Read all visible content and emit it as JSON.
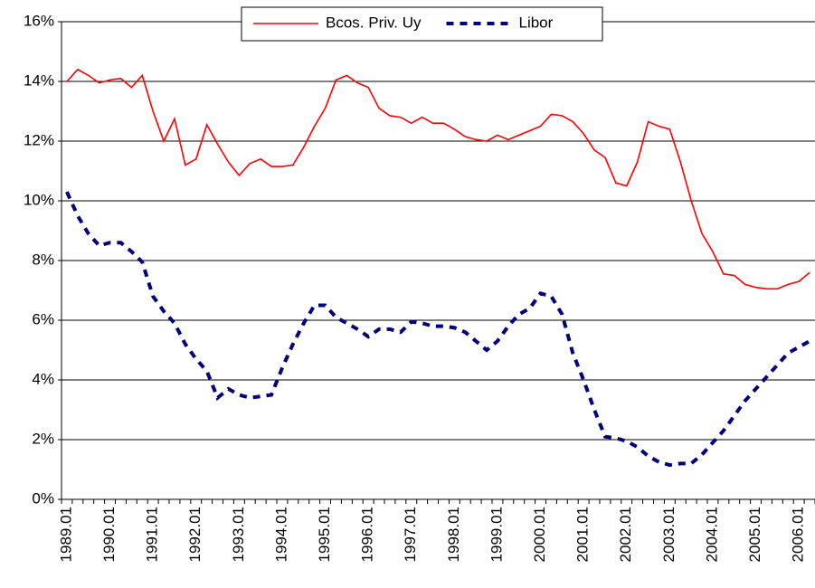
{
  "chart_data": {
    "type": "line",
    "categories": [
      "1989.01",
      null,
      null,
      null,
      "1990.01",
      null,
      null,
      null,
      "1991.01",
      null,
      null,
      null,
      "1992.01",
      null,
      null,
      null,
      "1993.01",
      null,
      null,
      null,
      "1994.01",
      null,
      null,
      null,
      "1995.01",
      null,
      null,
      null,
      "1996.01",
      null,
      null,
      null,
      "1997.01",
      null,
      null,
      null,
      "1998.01",
      null,
      null,
      null,
      "1999.01",
      null,
      null,
      null,
      "2000.01",
      null,
      null,
      null,
      "2001.01",
      null,
      null,
      null,
      "2002.01",
      null,
      null,
      null,
      "2003.01",
      null,
      null,
      null,
      "2004.01",
      null,
      null,
      null,
      "2005.01",
      null,
      null,
      null,
      "2006.01",
      null
    ],
    "series": [
      {
        "name": "Bcos. Priv. Uy",
        "color": "#ff0000",
        "dash": false,
        "values": [
          14.0,
          14.4,
          14.2,
          13.95,
          14.05,
          14.1,
          13.8,
          14.2,
          13.0,
          12.0,
          12.75,
          11.2,
          11.4,
          12.55,
          11.9,
          11.3,
          10.85,
          11.25,
          11.4,
          11.15,
          11.15,
          11.2,
          11.8,
          12.5,
          13.1,
          14.05,
          14.2,
          13.95,
          13.8,
          13.1,
          12.85,
          12.8,
          12.6,
          12.8,
          12.6,
          12.6,
          12.4,
          12.15,
          12.05,
          12.0,
          12.2,
          12.05,
          12.2,
          12.35,
          12.5,
          12.9,
          12.85,
          12.65,
          12.25,
          11.7,
          11.45,
          10.6,
          10.5,
          11.3,
          12.65,
          12.5,
          12.4,
          11.3,
          10.0,
          8.9,
          8.3,
          7.55,
          7.5,
          7.2,
          7.1,
          7.05,
          7.05,
          7.2,
          7.3,
          7.6
        ]
      },
      {
        "name": "Libor",
        "color": "#000080",
        "dash": true,
        "values": [
          10.3,
          9.5,
          8.9,
          8.5,
          8.6,
          8.6,
          8.3,
          7.95,
          6.8,
          6.3,
          5.9,
          5.2,
          4.7,
          4.3,
          3.4,
          3.7,
          3.5,
          3.4,
          3.45,
          3.5,
          4.4,
          5.2,
          5.9,
          6.5,
          6.5,
          6.1,
          5.9,
          5.7,
          5.45,
          5.7,
          5.7,
          5.6,
          5.95,
          5.9,
          5.8,
          5.8,
          5.75,
          5.6,
          5.3,
          5.0,
          5.3,
          5.8,
          6.2,
          6.4,
          6.9,
          6.8,
          6.2,
          4.9,
          4.0,
          3.0,
          2.1,
          2.05,
          1.95,
          1.75,
          1.45,
          1.25,
          1.15,
          1.2,
          1.2,
          1.5,
          1.9,
          2.3,
          2.8,
          3.3,
          3.7,
          4.1,
          4.5,
          4.9,
          5.1,
          5.3
        ]
      }
    ],
    "ylim": [
      0,
      16
    ],
    "yticks": [
      {
        "value": 0,
        "label": "0%"
      },
      {
        "value": 2,
        "label": "2%"
      },
      {
        "value": 4,
        "label": "4%"
      },
      {
        "value": 6,
        "label": "6%"
      },
      {
        "value": 8,
        "label": "8%"
      },
      {
        "value": 10,
        "label": "10%"
      },
      {
        "value": 12,
        "label": "12%"
      },
      {
        "value": 14,
        "label": "14%"
      },
      {
        "value": 16,
        "label": "16%"
      }
    ],
    "grid": true,
    "legend": "top"
  }
}
